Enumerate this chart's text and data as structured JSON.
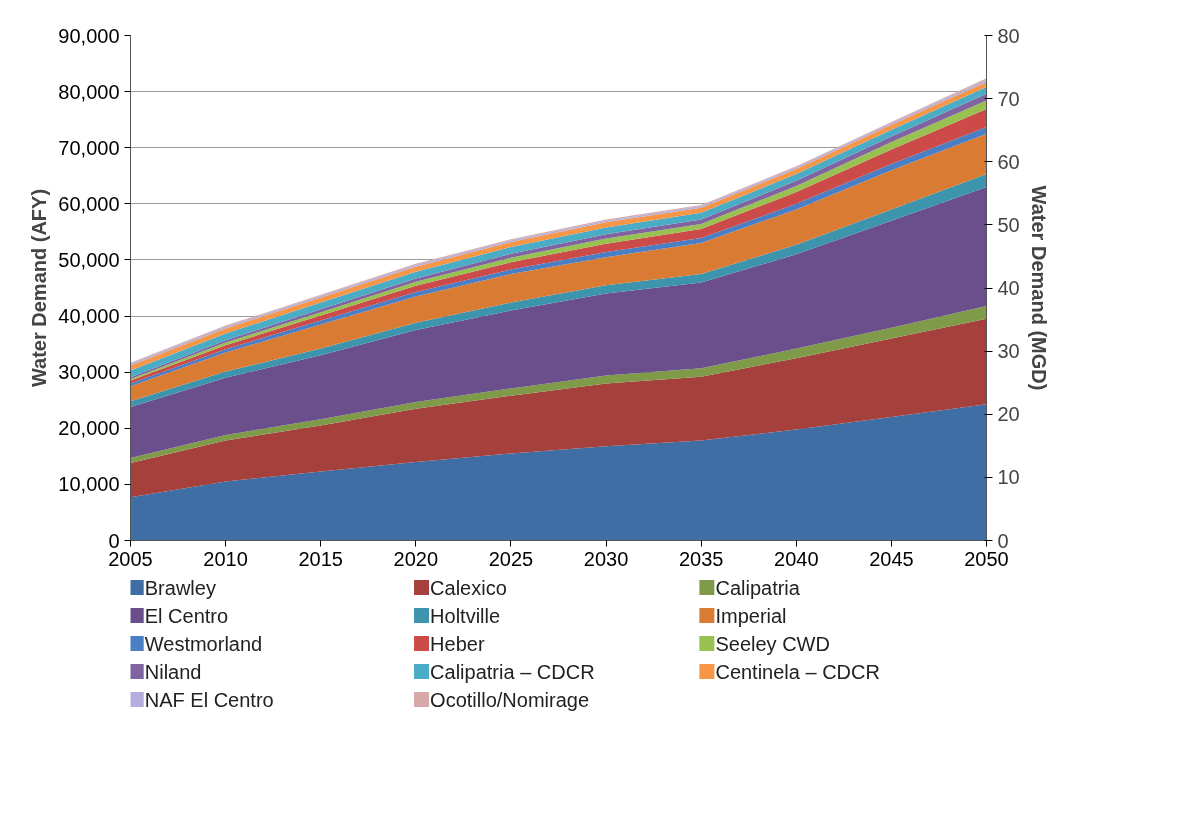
{
  "chart_data": {
    "type": "area",
    "stacked": true,
    "ylabel": "Water Demand (AFY)",
    "y2label": "Water Demand (MGD)",
    "x": [
      2005,
      2010,
      2015,
      2020,
      2025,
      2030,
      2035,
      2040,
      2045,
      2050
    ],
    "xlim": [
      2005,
      2050
    ],
    "xticks": [
      2005,
      2010,
      2015,
      2020,
      2025,
      2030,
      2035,
      2040,
      2045,
      2050
    ],
    "ylim": [
      0,
      90000
    ],
    "yticks": [
      {
        "value": 0,
        "label": "0"
      },
      {
        "value": 10000,
        "label": "10,000"
      },
      {
        "value": 20000,
        "label": "20,000"
      },
      {
        "value": 30000,
        "label": "30,000"
      },
      {
        "value": 40000,
        "label": "40,000"
      },
      {
        "value": 50000,
        "label": "50,000"
      },
      {
        "value": 60000,
        "label": "60,000"
      },
      {
        "value": 70000,
        "label": "70,000"
      },
      {
        "value": 80000,
        "label": "80,000"
      },
      {
        "value": 90000,
        "label": "90,000"
      }
    ],
    "y2lim": [
      0,
      80
    ],
    "y2ticks": [
      0,
      10,
      20,
      30,
      40,
      50,
      60,
      70,
      80
    ],
    "grid": "y",
    "legend": "bottom",
    "series": [
      {
        "name": "Brawley",
        "color": "#3f6ea5",
        "values": [
          7700,
          10500,
          12300,
          14000,
          15500,
          16800,
          17800,
          19800,
          22000,
          24300
        ]
      },
      {
        "name": "Calexico",
        "color": "#a5403d",
        "values": [
          6100,
          7300,
          8200,
          9500,
          10300,
          11200,
          11400,
          12700,
          14000,
          15200
        ]
      },
      {
        "name": "Calipatria",
        "color": "#7f9a48",
        "values": [
          900,
          1000,
          1100,
          1200,
          1300,
          1400,
          1500,
          1700,
          1900,
          2300
        ]
      },
      {
        "name": "El Centro",
        "color": "#6a4f8c",
        "values": [
          9100,
          10200,
          11400,
          12800,
          13900,
          14600,
          15300,
          16800,
          19100,
          21200
        ]
      },
      {
        "name": "Holtville",
        "color": "#3c95ad",
        "values": [
          1000,
          1100,
          1200,
          1300,
          1400,
          1500,
          1500,
          1700,
          2000,
          2300
        ]
      },
      {
        "name": "Imperial",
        "color": "#d97b32",
        "values": [
          2700,
          3400,
          4300,
          4700,
          5100,
          5000,
          5500,
          6300,
          7000,
          7200
        ]
      },
      {
        "name": "Westmorland",
        "color": "#4a7fc6",
        "values": [
          500,
          600,
          700,
          800,
          800,
          900,
          900,
          1000,
          1100,
          1200
        ]
      },
      {
        "name": "Heber",
        "color": "#cc4a47",
        "values": [
          500,
          700,
          900,
          1100,
          1300,
          1500,
          1600,
          2100,
          2600,
          3200
        ]
      },
      {
        "name": "Seeley CWD",
        "color": "#98c152",
        "values": [
          300,
          500,
          600,
          700,
          800,
          900,
          900,
          1100,
          1300,
          1500
        ]
      },
      {
        "name": "Niland",
        "color": "#8064a2",
        "values": [
          300,
          400,
          500,
          600,
          700,
          800,
          800,
          900,
          1000,
          1200
        ]
      },
      {
        "name": "Calipatria – CDCR",
        "color": "#4bacc6",
        "values": [
          1200,
          1200,
          1200,
          1200,
          1200,
          1200,
          1200,
          1200,
          1200,
          1200
        ]
      },
      {
        "name": "Centinela – CDCR",
        "color": "#f79646",
        "values": [
          900,
          900,
          900,
          900,
          900,
          900,
          900,
          900,
          900,
          900
        ]
      },
      {
        "name": "NAF El Centro",
        "color": "#b3aedb",
        "values": [
          300,
          300,
          300,
          300,
          300,
          300,
          300,
          300,
          300,
          400
        ]
      },
      {
        "name": "Ocotillo/Nomirage",
        "color": "#d6a9a8",
        "values": [
          200,
          200,
          200,
          200,
          200,
          200,
          200,
          200,
          200,
          300
        ]
      }
    ]
  }
}
